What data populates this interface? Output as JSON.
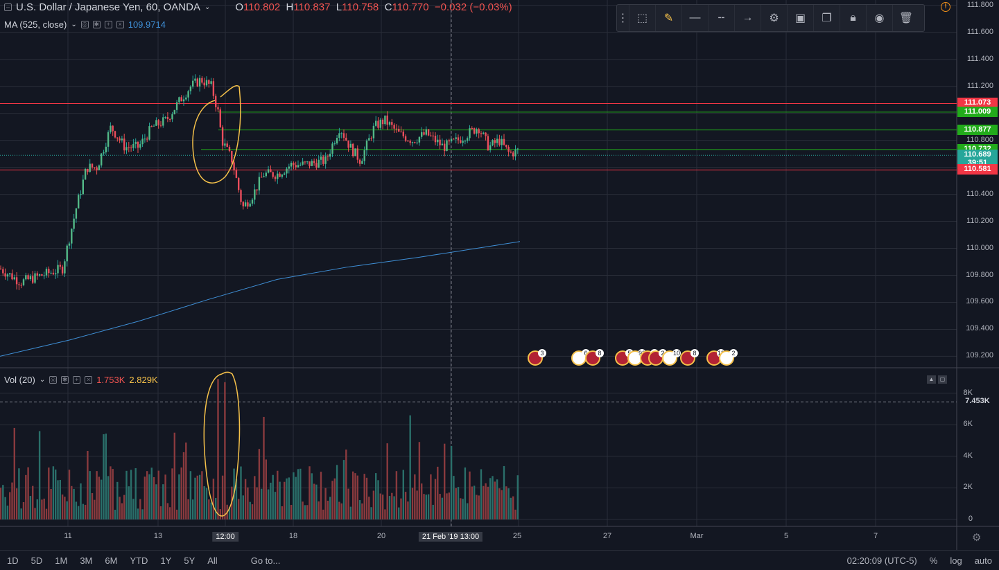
{
  "symbol": {
    "title": "U.S. Dollar / Japanese Yen, 60, OANDA",
    "open_label": "O",
    "open": "110.802",
    "high_label": "H",
    "high": "110.837",
    "low_label": "L",
    "low": "110.758",
    "close_label": "C",
    "close": "110.770",
    "change": "−0.032 (−0.03%)"
  },
  "ma_indicator": {
    "label": "MA (525, close)",
    "value": "109.9714"
  },
  "volume_indicator": {
    "label": "Vol (20)",
    "value1": "1.753K",
    "value2": "2.829K"
  },
  "price_labels": [
    {
      "text": "111.073",
      "price": 111.073,
      "color": "#f23645"
    },
    {
      "text": "111.009",
      "price": 111.009,
      "color": "#22ab1b"
    },
    {
      "text": "110.877",
      "price": 110.877,
      "color": "#22ab1b"
    },
    {
      "text": "110.732",
      "price": 110.732,
      "color": "#22ab1b"
    },
    {
      "text": "110.689",
      "price": 110.689,
      "color": "#26a69a"
    },
    {
      "text": "39:51",
      "price": 110.63,
      "color": "#26a69a"
    },
    {
      "text": "110.581",
      "price": 110.581,
      "color": "#f23645"
    }
  ],
  "volume_label": {
    "text": "7.453K",
    "value": 7453
  },
  "chart_data": {
    "type": "candlestick",
    "y_ticks": [
      "111.600",
      "111.400",
      "111.200",
      "110.800",
      "110.400",
      "110.200",
      "110.000",
      "109.800",
      "109.600",
      "109.400",
      "109.200"
    ],
    "y_top_tick": "111.800",
    "ylim": [
      109.12,
      111.84
    ],
    "vol_ticks": [
      "8K",
      "6K",
      "4K",
      "2K",
      "0"
    ],
    "vol_ylim": [
      0,
      9000
    ],
    "x_labels": [
      {
        "text": "11"
      },
      {
        "text": "13"
      },
      {
        "text": "12:00",
        "highlight": true
      },
      {
        "text": "18"
      },
      {
        "text": "20"
      },
      {
        "text": "21 Feb '19   13:00",
        "highlight": true
      },
      {
        "text": "25"
      },
      {
        "text": "27"
      },
      {
        "text": "Mar"
      },
      {
        "text": "5"
      },
      {
        "text": "7"
      }
    ],
    "horizontal_lines": [
      {
        "price": 111.073,
        "color": "#f23645"
      },
      {
        "price": 111.009,
        "color": "#22ab1b"
      },
      {
        "price": 110.877,
        "color": "#22ab1b"
      },
      {
        "price": 110.732,
        "color": "#22ab1b"
      },
      {
        "price": 110.581,
        "color": "#f23645"
      }
    ],
    "ma_points": [
      [
        0,
        109.2
      ],
      [
        100,
        109.32
      ],
      [
        200,
        109.46
      ],
      [
        300,
        109.62
      ],
      [
        400,
        109.77
      ],
      [
        500,
        109.86
      ],
      [
        600,
        109.93
      ],
      [
        700,
        110.01
      ],
      [
        750,
        110.05
      ]
    ],
    "candle_path_keypoints": [
      [
        0,
        109.85
      ],
      [
        30,
        109.75
      ],
      [
        60,
        109.8
      ],
      [
        90,
        109.85
      ],
      [
        110,
        110.3
      ],
      [
        125,
        110.6
      ],
      [
        140,
        110.6
      ],
      [
        160,
        110.9
      ],
      [
        180,
        110.75
      ],
      [
        200,
        110.75
      ],
      [
        220,
        110.9
      ],
      [
        240,
        110.95
      ],
      [
        260,
        111.1
      ],
      [
        275,
        111.2
      ],
      [
        290,
        111.25
      ],
      [
        305,
        111.2
      ],
      [
        315,
        111.0
      ],
      [
        320,
        110.8
      ],
      [
        335,
        110.65
      ],
      [
        350,
        110.3
      ],
      [
        365,
        110.4
      ],
      [
        380,
        110.55
      ],
      [
        400,
        110.55
      ],
      [
        420,
        110.62
      ],
      [
        440,
        110.62
      ],
      [
        470,
        110.65
      ],
      [
        490,
        110.9
      ],
      [
        505,
        110.75
      ],
      [
        520,
        110.65
      ],
      [
        540,
        110.9
      ],
      [
        555,
        110.95
      ],
      [
        575,
        110.85
      ],
      [
        595,
        110.8
      ],
      [
        615,
        110.85
      ],
      [
        640,
        110.75
      ],
      [
        660,
        110.8
      ],
      [
        690,
        110.9
      ],
      [
        705,
        110.75
      ],
      [
        720,
        110.8
      ],
      [
        735,
        110.7
      ],
      [
        750,
        110.73
      ]
    ],
    "volume_spikes": [
      [
        315,
        8900
      ],
      [
        325,
        8700
      ],
      [
        380,
        6500
      ],
      [
        590,
        6600
      ],
      [
        20,
        5800
      ],
      [
        55,
        5600
      ],
      [
        150,
        5400
      ],
      [
        250,
        5500
      ],
      [
        640,
        4800
      ]
    ]
  },
  "toolbar": {
    "items": [
      "drag-handle",
      "rect-select",
      "pencil",
      "line-solid",
      "line-dash",
      "line-arrow",
      "settings",
      "fill",
      "clone",
      "lock",
      "eye",
      "trash"
    ]
  },
  "events": [
    "3",
    "6",
    "8",
    "5",
    "92",
    "6",
    "2",
    "10",
    "8",
    "12",
    "2"
  ],
  "bottom": {
    "timeframes": [
      "1D",
      "5D",
      "1M",
      "3M",
      "6M",
      "YTD",
      "1Y",
      "5Y",
      "All"
    ],
    "goto": "Go to...",
    "clock": "02:20:09 (UTC-5)",
    "percent": "%",
    "log": "log",
    "auto": "auto"
  }
}
